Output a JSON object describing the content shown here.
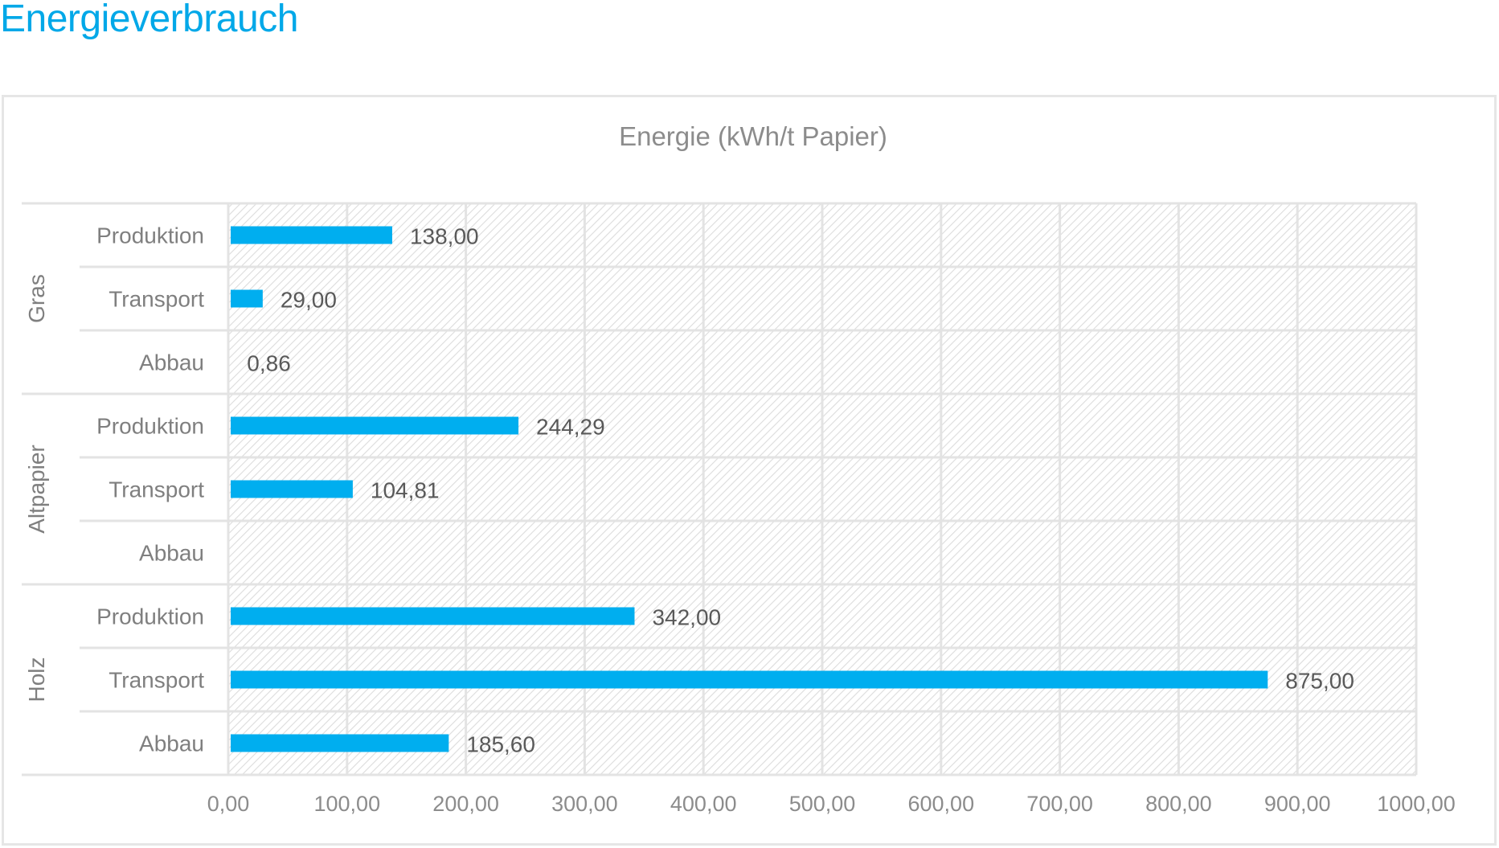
{
  "page": {
    "heading": "Energieverbrauch",
    "heading_color": "#00a8e8"
  },
  "chart_data": {
    "type": "bar",
    "orientation": "horizontal",
    "title": "Energie (kWh/t Papier)",
    "xlabel": "",
    "ylabel": "",
    "xlim": [
      0,
      1000
    ],
    "x_ticks": [
      "0,00",
      "100,00",
      "200,00",
      "300,00",
      "400,00",
      "500,00",
      "600,00",
      "700,00",
      "800,00",
      "900,00",
      "1000,00"
    ],
    "grid": true,
    "plot_background": "diagonal-hatch",
    "bar_color": "#00aeef",
    "groups": [
      {
        "name": "Gras",
        "rows": [
          {
            "category": "Produktion",
            "value": 138.0,
            "label": "138,00"
          },
          {
            "category": "Transport",
            "value": 29.0,
            "label": "29,00"
          },
          {
            "category": "Abbau",
            "value": 0.86,
            "label": "0,86"
          }
        ]
      },
      {
        "name": "Altpapier",
        "rows": [
          {
            "category": "Produktion",
            "value": 244.29,
            "label": "244,29"
          },
          {
            "category": "Transport",
            "value": 104.81,
            "label": "104,81"
          },
          {
            "category": "Abbau",
            "value": null,
            "label": ""
          }
        ]
      },
      {
        "name": "Holz",
        "rows": [
          {
            "category": "Produktion",
            "value": 342.0,
            "label": "342,00"
          },
          {
            "category": "Transport",
            "value": 875.0,
            "label": "875,00"
          },
          {
            "category": "Abbau",
            "value": 185.6,
            "label": "185,60"
          }
        ]
      }
    ]
  }
}
